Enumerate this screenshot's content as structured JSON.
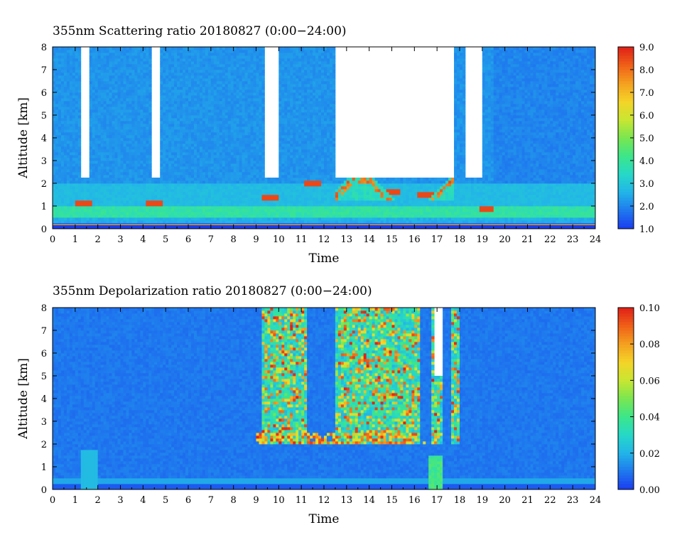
{
  "chart_data": [
    {
      "type": "heatmap",
      "title": "355nm Scattering ratio  20180827 (0:00−24:00)",
      "xlabel": "Time",
      "ylabel": "Altitude [km]",
      "xlim": [
        0,
        24
      ],
      "ylim": [
        0,
        8
      ],
      "x_ticks": [
        "0",
        "1",
        "2",
        "3",
        "4",
        "5",
        "6",
        "7",
        "8",
        "9",
        "10",
        "11",
        "12",
        "13",
        "14",
        "15",
        "16",
        "17",
        "18",
        "19",
        "20",
        "21",
        "22",
        "23",
        "24"
      ],
      "y_ticks": [
        "0",
        "1",
        "2",
        "3",
        "4",
        "5",
        "6",
        "7",
        "8"
      ],
      "colorbar": {
        "min": 1.0,
        "max": 9.0,
        "ticks": [
          "1.0",
          "2.0",
          "3.0",
          "4.0",
          "5.0",
          "6.0",
          "7.0",
          "8.0",
          "9.0"
        ]
      },
      "features": {
        "boundary_layer_top_km": 1.0,
        "ground_layer_km": [
          0.4,
          0.5
        ],
        "cloud_base_km_by_hour": [
          {
            "hour": 1.4,
            "base_km": 1.1
          },
          {
            "hour": 4.5,
            "base_km": 1.1
          },
          {
            "hour": 9.6,
            "base_km": 1.4
          },
          {
            "hour": 11.5,
            "base_km": 2.0
          },
          {
            "hour": 13.5,
            "base_km": 2.3
          },
          {
            "hour": 15.0,
            "base_km": 1.6
          },
          {
            "hour": 16.5,
            "base_km": 1.5
          },
          {
            "hour": 19.2,
            "base_km": 0.9
          }
        ],
        "no_data_periods_hours": [
          [
            1.2,
            1.6
          ],
          [
            4.4,
            4.7
          ],
          [
            9.4,
            10.0
          ],
          [
            12.5,
            17.8
          ],
          [
            18.3,
            19.0
          ]
        ]
      }
    },
    {
      "type": "heatmap",
      "title": "355nm Depolarization ratio  20180827 (0:00−24:00)",
      "xlabel": "Time",
      "ylabel": "Altitude [km]",
      "xlim": [
        0,
        24
      ],
      "ylim": [
        0,
        8
      ],
      "x_ticks": [
        "0",
        "1",
        "2",
        "3",
        "4",
        "5",
        "6",
        "7",
        "8",
        "9",
        "10",
        "11",
        "12",
        "13",
        "14",
        "15",
        "16",
        "17",
        "18",
        "19",
        "20",
        "21",
        "22",
        "23",
        "24"
      ],
      "y_ticks": [
        "0",
        "1",
        "2",
        "3",
        "4",
        "5",
        "6",
        "7",
        "8"
      ],
      "colorbar": {
        "min": 0.0,
        "max": 0.1,
        "ticks": [
          "0.00",
          "0.02",
          "0.04",
          "0.06",
          "0.08",
          "0.10"
        ]
      },
      "features": {
        "background_value": 0.01,
        "high_depol_columns_hours": [
          [
            9.3,
            11.3
          ],
          [
            12.5,
            16.2
          ],
          [
            16.8,
            17.3
          ],
          [
            17.6,
            18.0
          ]
        ],
        "enhanced_layer_km": [
          2.0,
          2.5
        ],
        "no_data_column_hours": [
          16.9,
          17.2
        ]
      }
    }
  ]
}
